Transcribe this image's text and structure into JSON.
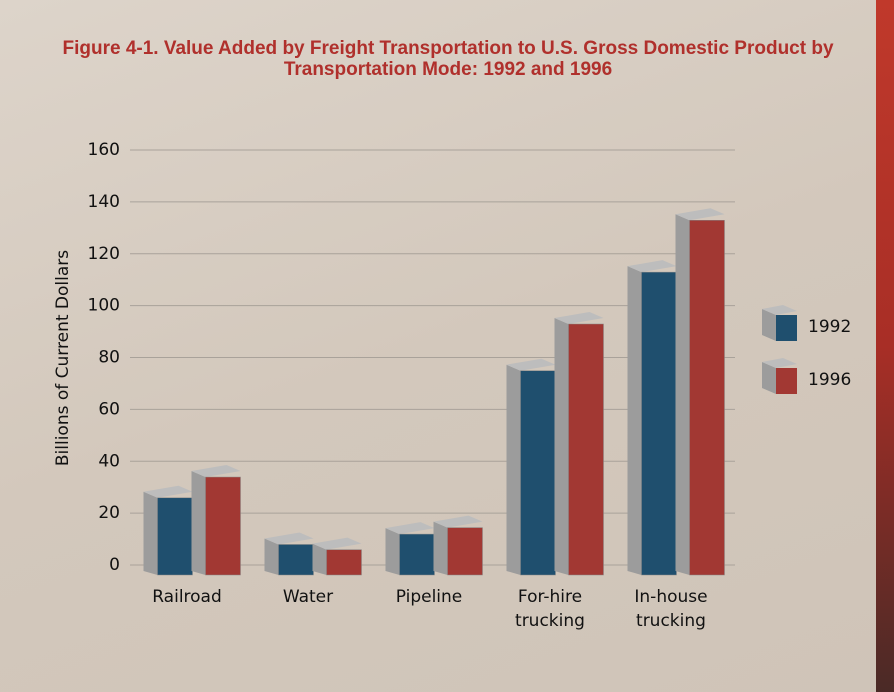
{
  "chart_data": {
    "type": "bar3d",
    "title": "Figure 4-1.  Value Added by Freight Transportation to U.S. Gross Domestic Product by Transportation Mode: 1992 and 1996",
    "y_label": "Billions of Current Dollars",
    "categories": [
      "Railroad",
      "Water",
      "Pipeline",
      "For-hire trucking",
      "In-house trucking"
    ],
    "series": [
      {
        "name": "1992",
        "color": "#1f4f6e",
        "values": [
          29,
          11,
          15,
          78,
          116
        ]
      },
      {
        "name": "1996",
        "color": "#a23833",
        "values": [
          37,
          9,
          17.5,
          96,
          136
        ]
      }
    ],
    "ylim": [
      0,
      160
    ],
    "yticks": [
      0,
      20,
      40,
      60,
      80,
      100,
      120,
      140,
      160
    ],
    "grid": true
  }
}
